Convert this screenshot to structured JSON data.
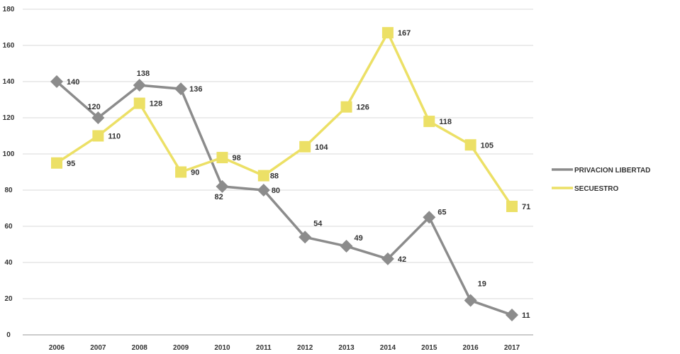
{
  "chart_data": {
    "type": "line",
    "categories": [
      "2006",
      "2007",
      "2008",
      "2009",
      "2010",
      "2011",
      "2012",
      "2013",
      "2014",
      "2015",
      "2016",
      "2017"
    ],
    "ylim": [
      0,
      180
    ],
    "yticks": [
      0,
      20,
      40,
      60,
      80,
      100,
      120,
      140,
      160,
      180
    ],
    "grid": true,
    "legend": "right",
    "series": [
      {
        "name": "PRIVACION LIBERTAD",
        "color": "#8c8c8c",
        "marker": "diamond",
        "values": [
          140,
          120,
          138,
          136,
          82,
          80,
          54,
          49,
          42,
          65,
          19,
          11
        ],
        "labels": [
          "140",
          "120",
          "138",
          "136",
          "82",
          "80",
          "54",
          "49",
          "42",
          "65",
          "19",
          "11"
        ]
      },
      {
        "name": "SECUESTRO",
        "color": "#ece066",
        "marker": "square",
        "values": [
          95,
          110,
          128,
          90,
          98,
          88,
          104,
          126,
          167,
          118,
          105,
          71
        ],
        "labels": [
          "95",
          "110",
          "128",
          "90",
          "98",
          "88",
          "104",
          "126",
          "167",
          "118",
          "105",
          "71"
        ]
      }
    ]
  }
}
